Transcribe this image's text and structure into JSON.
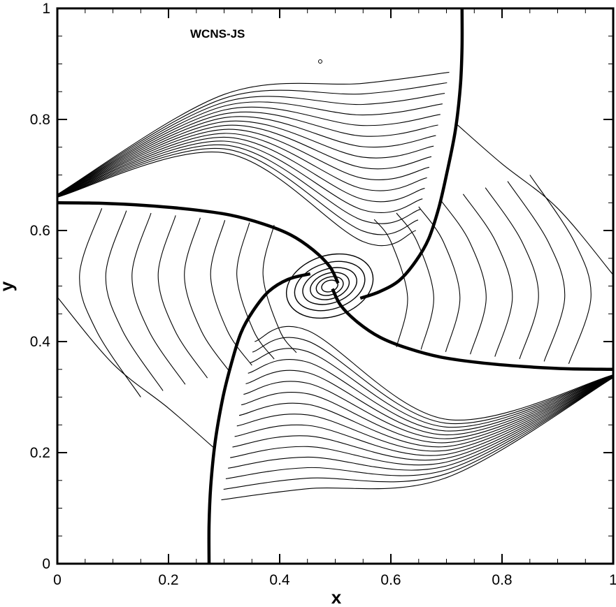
{
  "chart_data": {
    "type": "contour",
    "annotation": "WCNS-JS",
    "xlabel": "x",
    "ylabel": "y",
    "xlim": [
      0,
      1
    ],
    "ylim": [
      0,
      1
    ],
    "x_major_ticks": [
      0,
      0.2,
      0.4,
      0.6,
      0.8,
      1
    ],
    "y_major_ticks": [
      0,
      0.2,
      0.4,
      0.6,
      0.8,
      1
    ],
    "x_tick_labels": [
      "0",
      "0.2",
      "0.4",
      "0.6",
      "0.8",
      "1"
    ],
    "y_tick_labels": [
      "0",
      "0.2",
      "0.4",
      "0.6",
      "0.8",
      "1"
    ],
    "minor_tick_step": 0.05,
    "grid": false,
    "line_color": "#000000",
    "shocks": [
      {
        "name": "shock-top",
        "points": [
          [
            0.728,
            1.0
          ],
          [
            0.728,
            0.93
          ],
          [
            0.725,
            0.86
          ],
          [
            0.716,
            0.78
          ],
          [
            0.7,
            0.7
          ],
          [
            0.686,
            0.64
          ],
          [
            0.668,
            0.585
          ],
          [
            0.645,
            0.545
          ],
          [
            0.615,
            0.51
          ],
          [
            0.58,
            0.49
          ],
          [
            0.545,
            0.478
          ]
        ]
      },
      {
        "name": "shock-bottom",
        "points": [
          [
            0.273,
            0.0
          ],
          [
            0.273,
            0.07
          ],
          [
            0.276,
            0.14
          ],
          [
            0.284,
            0.22
          ],
          [
            0.298,
            0.3
          ],
          [
            0.313,
            0.36
          ],
          [
            0.33,
            0.415
          ],
          [
            0.352,
            0.455
          ],
          [
            0.38,
            0.49
          ],
          [
            0.415,
            0.512
          ],
          [
            0.455,
            0.522
          ]
        ]
      },
      {
        "name": "shock-left",
        "points": [
          [
            0.0,
            0.65
          ],
          [
            0.08,
            0.649
          ],
          [
            0.16,
            0.645
          ],
          [
            0.24,
            0.638
          ],
          [
            0.31,
            0.628
          ],
          [
            0.37,
            0.612
          ],
          [
            0.42,
            0.592
          ],
          [
            0.46,
            0.565
          ],
          [
            0.49,
            0.535
          ],
          [
            0.505,
            0.505
          ]
        ]
      },
      {
        "name": "shock-right",
        "points": [
          [
            1.0,
            0.35
          ],
          [
            0.92,
            0.351
          ],
          [
            0.84,
            0.355
          ],
          [
            0.76,
            0.362
          ],
          [
            0.69,
            0.372
          ],
          [
            0.63,
            0.388
          ],
          [
            0.58,
            0.408
          ],
          [
            0.54,
            0.435
          ],
          [
            0.51,
            0.465
          ],
          [
            0.495,
            0.495
          ]
        ]
      }
    ],
    "vortex": {
      "center": [
        0.49,
        0.5
      ],
      "rings": [
        [
          0.16,
          0.11
        ],
        [
          0.13,
          0.083
        ],
        [
          0.1,
          0.062
        ],
        [
          0.072,
          0.046
        ],
        [
          0.05,
          0.032
        ],
        [
          0.03,
          0.02
        ]
      ],
      "rotation_deg": -18
    }
  }
}
